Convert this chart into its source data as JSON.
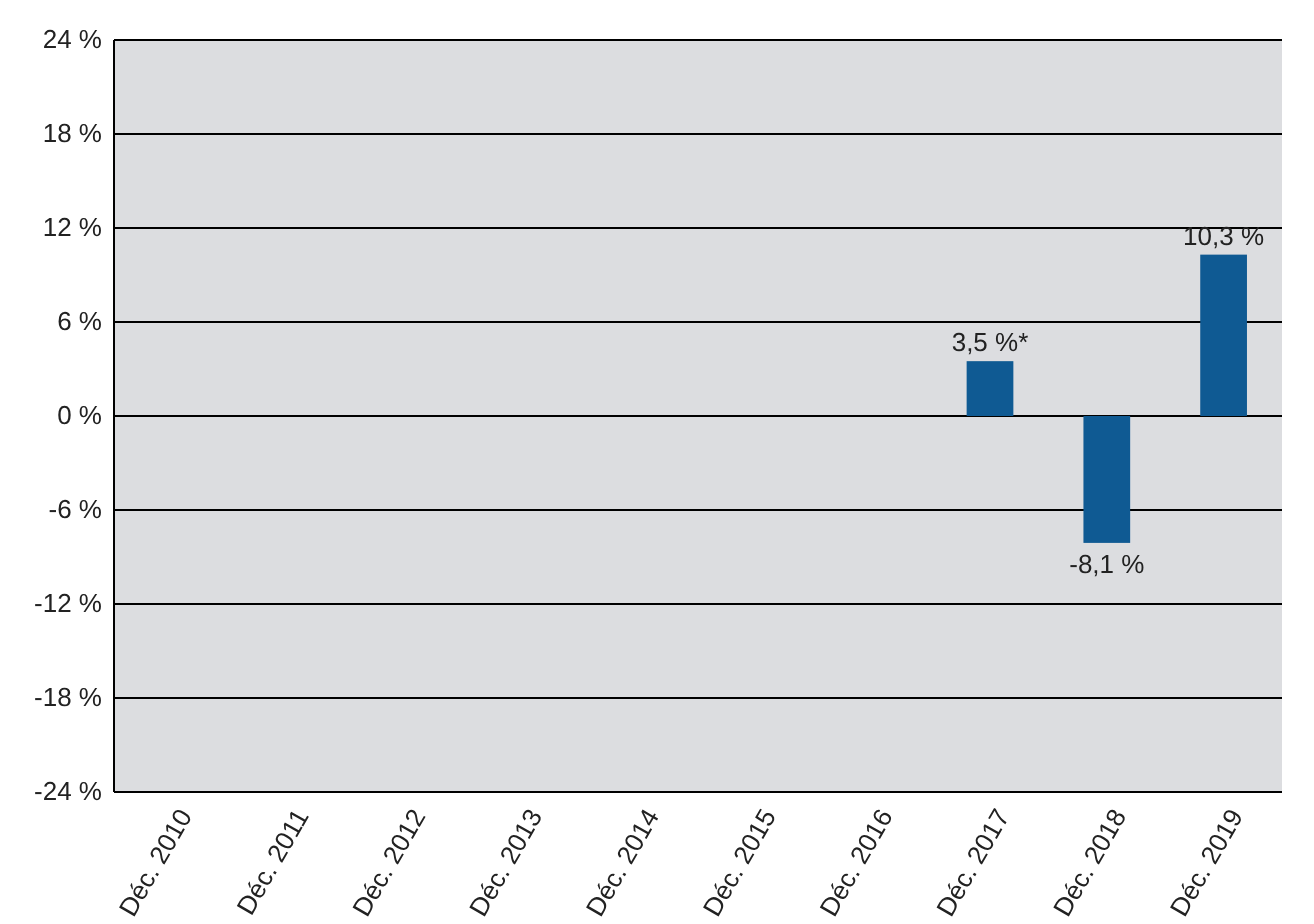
{
  "chart_data": {
    "type": "bar",
    "categories": [
      "Déc. 2010",
      "Déc. 2011",
      "Déc. 2012",
      "Déc. 2013",
      "Déc. 2014",
      "Déc. 2015",
      "Déc. 2016",
      "Déc. 2017",
      "Déc. 2018",
      "Déc. 2019"
    ],
    "values": [
      null,
      null,
      null,
      null,
      null,
      null,
      null,
      3.5,
      -8.1,
      10.3
    ],
    "value_labels": [
      null,
      null,
      null,
      null,
      null,
      null,
      null,
      "3,5 %*",
      "-8,1 %",
      "10,3 %"
    ],
    "color": "#0f5a93",
    "ylim": [
      -24,
      24
    ],
    "yticks": [
      {
        "value": -24,
        "label": "-24 %"
      },
      {
        "value": -18,
        "label": "-18 %"
      },
      {
        "value": -12,
        "label": "-12 %"
      },
      {
        "value": -6,
        "label": "-6 %"
      },
      {
        "value": 0,
        "label": "0 %"
      },
      {
        "value": 6,
        "label": "6 %"
      },
      {
        "value": 12,
        "label": "12 %"
      },
      {
        "value": 18,
        "label": "18 %"
      },
      {
        "value": 24,
        "label": "24 %"
      }
    ],
    "grid": "y"
  }
}
